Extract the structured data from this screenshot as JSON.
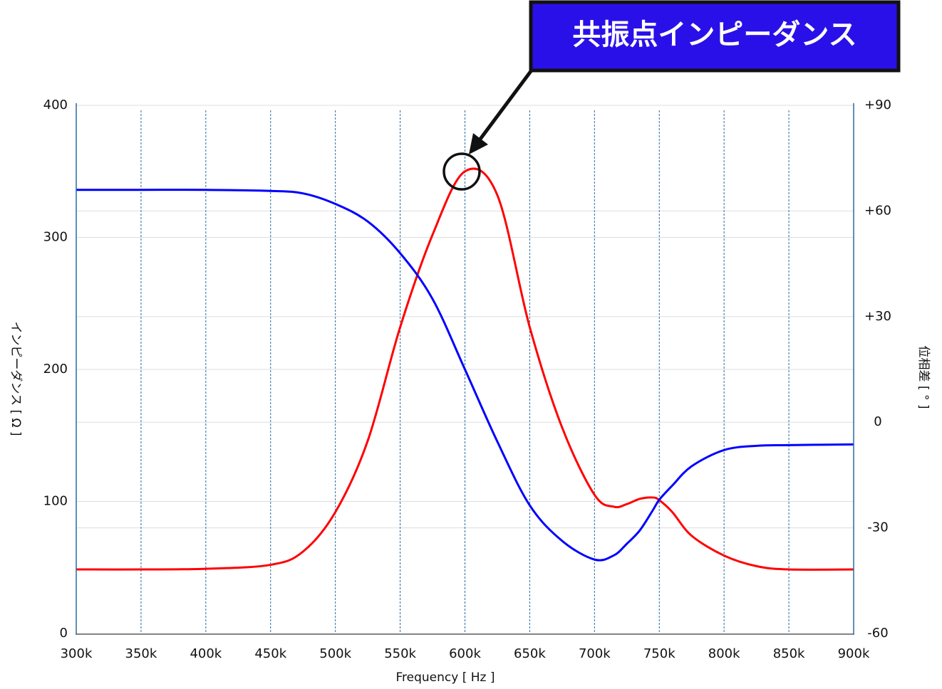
{
  "chart_data": {
    "type": "line",
    "annotation": "共振点インピーダンス",
    "xlabel": "Frequency [ Hz ]",
    "ylabel": "インピーダンス [ Ω ]",
    "y2label": "位相差 [ ° ]",
    "x": [
      300000,
      350000,
      400000,
      450000,
      475000,
      500000,
      525000,
      550000,
      575000,
      600000,
      625000,
      650000,
      675000,
      700000,
      715000,
      725000,
      735000,
      745000,
      750000,
      760000,
      775000,
      800000,
      825000,
      850000,
      900000
    ],
    "series": [
      {
        "color": "#ff0000",
        "values": [
          48.5,
          48.5,
          49,
          52,
          62,
          92,
          146,
          232,
          302,
          350,
          332,
          232,
          156,
          105,
          96,
          98,
          102,
          103,
          101,
          92,
          74,
          59,
          51,
          48.5,
          48.5
        ]
      },
      {
        "color": "#0000ff",
        "axis": "y2",
        "values": [
          66,
          66,
          66,
          65.7,
          65,
          62,
          57,
          48,
          35,
          15,
          -5.5,
          -23.6,
          -33.7,
          -39,
          -37.8,
          -34.5,
          -30.7,
          -25,
          -22,
          -18,
          -12.5,
          -7.9,
          -6.7,
          -6.5,
          -6.3
        ]
      }
    ],
    "xlim": [
      300000,
      900000
    ],
    "xticks": [
      {
        "value": 300000,
        "label": "300k"
      },
      {
        "value": 350000,
        "label": "350k"
      },
      {
        "value": 400000,
        "label": "400k"
      },
      {
        "value": 450000,
        "label": "450k"
      },
      {
        "value": 500000,
        "label": "500k"
      },
      {
        "value": 550000,
        "label": "550k"
      },
      {
        "value": 600000,
        "label": "600k"
      },
      {
        "value": 650000,
        "label": "650k"
      },
      {
        "value": 700000,
        "label": "700k"
      },
      {
        "value": 750000,
        "label": "750k"
      },
      {
        "value": 800000,
        "label": "800k"
      },
      {
        "value": 850000,
        "label": "850k"
      },
      {
        "value": 900000,
        "label": "900k"
      }
    ],
    "ylim": [
      0,
      400
    ],
    "yticks": [
      0,
      100,
      200,
      300,
      400
    ],
    "y2lim": [
      -60,
      90
    ],
    "y2ticks": [
      -60,
      -30,
      0,
      {
        "value": 30,
        "label": "+30"
      },
      {
        "value": 60,
        "label": "+60"
      },
      {
        "value": 90,
        "label": "+90"
      }
    ],
    "grid": true
  }
}
